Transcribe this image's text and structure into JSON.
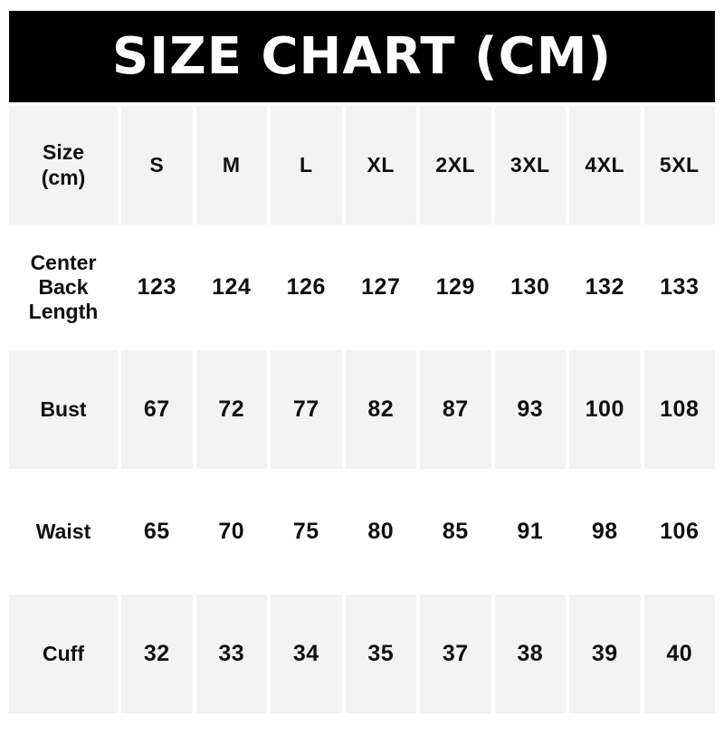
{
  "banner": {
    "title": "SIZE CHART (CM)",
    "bg_color": "#000000",
    "text_color": "#ffffff"
  },
  "table": {
    "corner_label": "Size\n(cm)",
    "columns": [
      "S",
      "M",
      "L",
      "XL",
      "2XL",
      "3XL",
      "4XL",
      "5XL"
    ],
    "rows": [
      {
        "label": "Center Back Length",
        "values": [
          "123",
          "124",
          "126",
          "127",
          "129",
          "130",
          "132",
          "133"
        ]
      },
      {
        "label": "Bust",
        "values": [
          "67",
          "72",
          "77",
          "82",
          "87",
          "93",
          "100",
          "108"
        ]
      },
      {
        "label": "Waist",
        "values": [
          "65",
          "70",
          "75",
          "80",
          "85",
          "91",
          "98",
          "106"
        ]
      },
      {
        "label": "Cuff",
        "values": [
          "32",
          "33",
          "34",
          "35",
          "37",
          "38",
          "39",
          "40"
        ]
      }
    ],
    "stripe_color": "#f3f3f3",
    "gap_color": "#ffffff",
    "text_color": "#101010"
  },
  "chart_data": {
    "type": "table",
    "title": "SIZE CHART (CM)",
    "unit": "cm",
    "categories": [
      "S",
      "M",
      "L",
      "XL",
      "2XL",
      "3XL",
      "4XL",
      "5XL"
    ],
    "series": [
      {
        "name": "Center Back Length",
        "values": [
          123,
          124,
          126,
          127,
          129,
          130,
          132,
          133
        ]
      },
      {
        "name": "Bust",
        "values": [
          67,
          72,
          77,
          82,
          87,
          93,
          100,
          108
        ]
      },
      {
        "name": "Waist",
        "values": [
          65,
          70,
          75,
          80,
          85,
          91,
          98,
          106
        ]
      },
      {
        "name": "Cuff",
        "values": [
          32,
          33,
          34,
          35,
          37,
          38,
          39,
          40
        ]
      }
    ],
    "layout": {
      "striped_rows": true,
      "header_banner": true,
      "grid": "white gutters between cells"
    }
  }
}
